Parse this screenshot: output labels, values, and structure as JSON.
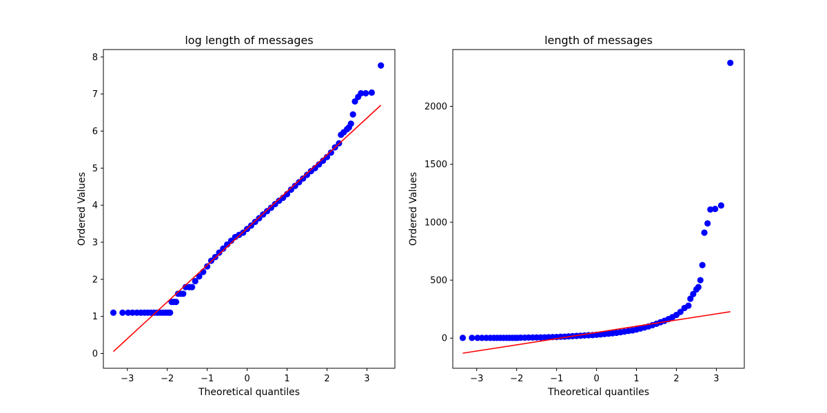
{
  "chart_data": [
    {
      "type": "scatter",
      "title": "log length of messages",
      "xlabel": "Theoretical quantiles",
      "ylabel": "Ordered Values",
      "xlim": [
        -3.6,
        3.7
      ],
      "ylim": [
        -0.4,
        8.2
      ],
      "xticks": [
        -3,
        -2,
        -1,
        0,
        1,
        2,
        3
      ],
      "xtick_labels": [
        "−3",
        "−2",
        "−1",
        "0",
        "1",
        "2",
        "3"
      ],
      "yticks": [
        0,
        1,
        2,
        3,
        4,
        5,
        6,
        7,
        8
      ],
      "ytick_labels": [
        "0",
        "1",
        "2",
        "3",
        "4",
        "5",
        "6",
        "7",
        "8"
      ],
      "grid": false,
      "series": [
        {
          "kind": "points",
          "color": "#0000ff",
          "points": [
            [
              -3.35,
              1.1
            ],
            [
              -3.12,
              1.1
            ],
            [
              -2.98,
              1.1
            ],
            [
              -2.87,
              1.1
            ],
            [
              -2.76,
              1.1
            ],
            [
              -2.66,
              1.1
            ],
            [
              -2.57,
              1.1
            ],
            [
              -2.49,
              1.1
            ],
            [
              -2.41,
              1.1
            ],
            [
              -2.33,
              1.1
            ],
            [
              -2.25,
              1.1
            ],
            [
              -2.18,
              1.1
            ],
            [
              -2.11,
              1.1
            ],
            [
              -2.04,
              1.1
            ],
            [
              -1.98,
              1.1
            ],
            [
              -1.93,
              1.1
            ],
            [
              -1.89,
              1.39
            ],
            [
              -1.83,
              1.39
            ],
            [
              -1.78,
              1.39
            ],
            [
              -1.73,
              1.61
            ],
            [
              -1.66,
              1.61
            ],
            [
              -1.6,
              1.61
            ],
            [
              -1.54,
              1.79
            ],
            [
              -1.45,
              1.79
            ],
            [
              -1.38,
              1.79
            ],
            [
              -1.3,
              1.95
            ],
            [
              -1.2,
              2.08
            ],
            [
              -1.1,
              2.2
            ],
            [
              -1.0,
              2.35
            ],
            [
              -0.9,
              2.5
            ],
            [
              -0.8,
              2.6
            ],
            [
              -0.7,
              2.72
            ],
            [
              -0.6,
              2.83
            ],
            [
              -0.5,
              2.94
            ],
            [
              -0.4,
              3.04
            ],
            [
              -0.3,
              3.14
            ],
            [
              -0.2,
              3.2
            ],
            [
              -0.1,
              3.26
            ],
            [
              0.0,
              3.36
            ],
            [
              0.1,
              3.45
            ],
            [
              0.2,
              3.55
            ],
            [
              0.3,
              3.65
            ],
            [
              0.4,
              3.75
            ],
            [
              0.5,
              3.84
            ],
            [
              0.6,
              3.93
            ],
            [
              0.7,
              4.03
            ],
            [
              0.8,
              4.12
            ],
            [
              0.9,
              4.2
            ],
            [
              1.0,
              4.3
            ],
            [
              1.1,
              4.42
            ],
            [
              1.2,
              4.52
            ],
            [
              1.3,
              4.62
            ],
            [
              1.4,
              4.72
            ],
            [
              1.5,
              4.82
            ],
            [
              1.6,
              4.92
            ],
            [
              1.7,
              5.0
            ],
            [
              1.8,
              5.1
            ],
            [
              1.9,
              5.2
            ],
            [
              2.0,
              5.3
            ],
            [
              2.1,
              5.42
            ],
            [
              2.2,
              5.56
            ],
            [
              2.3,
              5.67
            ],
            [
              2.35,
              5.9
            ],
            [
              2.42,
              5.97
            ],
            [
              2.5,
              6.05
            ],
            [
              2.55,
              6.1
            ],
            [
              2.6,
              6.2
            ],
            [
              2.65,
              6.45
            ],
            [
              2.7,
              6.8
            ],
            [
              2.78,
              6.92
            ],
            [
              2.85,
              7.02
            ],
            [
              2.97,
              7.02
            ],
            [
              3.12,
              7.04
            ],
            [
              3.35,
              7.77
            ]
          ]
        },
        {
          "kind": "line",
          "color": "#ff0000",
          "points": [
            [
              -3.35,
              0.05
            ],
            [
              3.35,
              6.7
            ]
          ]
        }
      ]
    },
    {
      "type": "scatter",
      "title": "length of messages",
      "xlabel": "Theoretical quantiles",
      "ylabel": "Ordered Values",
      "xlim": [
        -3.6,
        3.7
      ],
      "ylim": [
        -260,
        2490
      ],
      "xticks": [
        -3,
        -2,
        -1,
        0,
        1,
        2,
        3
      ],
      "xtick_labels": [
        "−3",
        "−2",
        "−1",
        "0",
        "1",
        "2",
        "3"
      ],
      "yticks": [
        0,
        500,
        1000,
        1500,
        2000
      ],
      "ytick_labels": [
        "0",
        "500",
        "1000",
        "1500",
        "2000"
      ],
      "grid": false,
      "series": [
        {
          "kind": "points",
          "color": "#0000ff",
          "points": [
            [
              -3.35,
              2
            ],
            [
              -3.12,
              2
            ],
            [
              -2.98,
              2
            ],
            [
              -2.87,
              2
            ],
            [
              -2.76,
              2
            ],
            [
              -2.66,
              2
            ],
            [
              -2.57,
              2
            ],
            [
              -2.49,
              2
            ],
            [
              -2.41,
              2
            ],
            [
              -2.33,
              2
            ],
            [
              -2.25,
              2
            ],
            [
              -2.18,
              2
            ],
            [
              -2.11,
              2
            ],
            [
              -2.04,
              2
            ],
            [
              -1.98,
              2
            ],
            [
              -1.9,
              4
            ],
            [
              -1.8,
              4
            ],
            [
              -1.7,
              5
            ],
            [
              -1.6,
              5
            ],
            [
              -1.5,
              6
            ],
            [
              -1.4,
              6
            ],
            [
              -1.3,
              7
            ],
            [
              -1.2,
              8
            ],
            [
              -1.1,
              9
            ],
            [
              -1.0,
              10
            ],
            [
              -0.9,
              12
            ],
            [
              -0.8,
              13
            ],
            [
              -0.7,
              15
            ],
            [
              -0.6,
              17
            ],
            [
              -0.5,
              19
            ],
            [
              -0.4,
              21
            ],
            [
              -0.3,
              23
            ],
            [
              -0.2,
              25
            ],
            [
              -0.1,
              26
            ],
            [
              0.0,
              29
            ],
            [
              0.1,
              32
            ],
            [
              0.2,
              35
            ],
            [
              0.3,
              38
            ],
            [
              0.4,
              42
            ],
            [
              0.5,
              46
            ],
            [
              0.6,
              51
            ],
            [
              0.7,
              56
            ],
            [
              0.8,
              62
            ],
            [
              0.9,
              67
            ],
            [
              1.0,
              74
            ],
            [
              1.1,
              83
            ],
            [
              1.2,
              92
            ],
            [
              1.3,
              101
            ],
            [
              1.4,
              112
            ],
            [
              1.5,
              124
            ],
            [
              1.6,
              137
            ],
            [
              1.7,
              149
            ],
            [
              1.8,
              164
            ],
            [
              1.9,
              181
            ],
            [
              2.0,
              200
            ],
            [
              2.1,
              226
            ],
            [
              2.2,
              260
            ],
            [
              2.3,
              280
            ],
            [
              2.35,
              340
            ],
            [
              2.42,
              380
            ],
            [
              2.5,
              420
            ],
            [
              2.55,
              440
            ],
            [
              2.6,
              500
            ],
            [
              2.65,
              630
            ],
            [
              2.7,
              910
            ],
            [
              2.78,
              990
            ],
            [
              2.85,
              1110
            ],
            [
              2.97,
              1115
            ],
            [
              3.12,
              1145
            ],
            [
              3.35,
              2375
            ]
          ]
        },
        {
          "kind": "line",
          "color": "#ff0000",
          "points": [
            [
              -3.35,
              -130
            ],
            [
              3.35,
              228
            ]
          ]
        }
      ]
    }
  ]
}
